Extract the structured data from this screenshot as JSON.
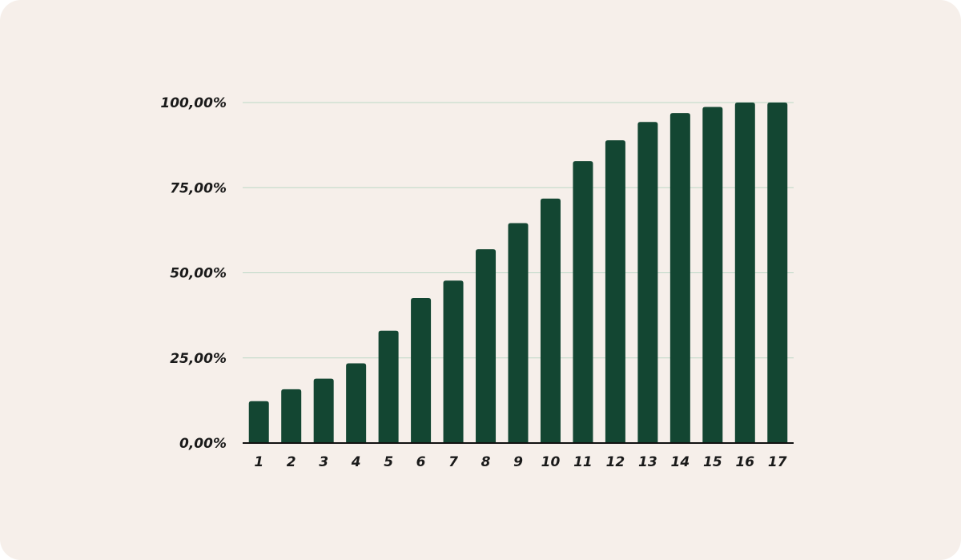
{
  "colors": {
    "background": "#f6efea",
    "bar": "#134632",
    "gridline": "#bcd8c6",
    "axis": "#111111",
    "text": "#1a1a1a"
  },
  "chart_data": {
    "type": "bar",
    "title": "",
    "xlabel": "",
    "ylabel": "",
    "categories": [
      "1",
      "2",
      "3",
      "4",
      "5",
      "6",
      "7",
      "8",
      "9",
      "10",
      "11",
      "12",
      "13",
      "14",
      "15",
      "16",
      "17"
    ],
    "series": [
      {
        "values": [
          12.3,
          15.8,
          18.9,
          23.4,
          33.0,
          42.6,
          47.7,
          56.9,
          64.6,
          71.8,
          82.8,
          88.9,
          94.3,
          96.9,
          98.7,
          100.0,
          100.0
        ]
      }
    ],
    "ylim": [
      0,
      100
    ],
    "y_ticks": [
      0,
      25,
      50,
      75,
      100
    ],
    "y_tick_labels": [
      "0,00%",
      "25,00%",
      "50,00%",
      "75,00%",
      "100,00%"
    ],
    "grid": true,
    "legend": "none"
  }
}
